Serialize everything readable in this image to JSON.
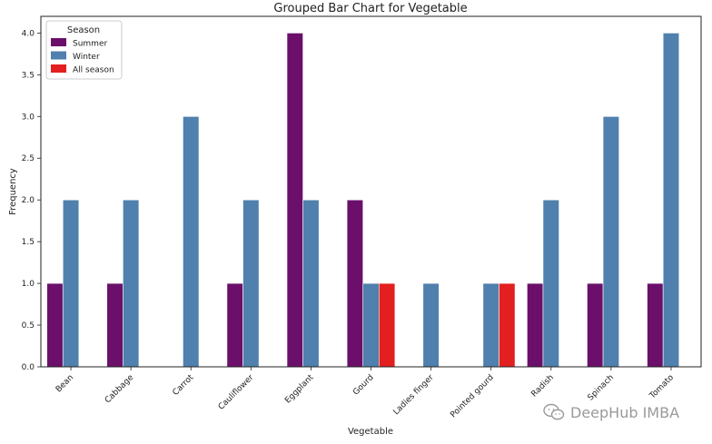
{
  "chart_data": {
    "type": "bar",
    "title": "Grouped Bar Chart for Vegetable",
    "xlabel": "Vegetable",
    "ylabel": "Frequency",
    "categories": [
      "Bean",
      "Cabbage",
      "Carrot",
      "Cauliflower",
      "Eggplant",
      "Gourd",
      "Ladies finger",
      "Pointed gourd",
      "Radish",
      "Spinach",
      "Tomato"
    ],
    "series": [
      {
        "name": "Summer",
        "color": "#6b0f6b",
        "values": [
          1,
          1,
          0,
          1,
          4,
          2,
          0,
          0,
          1,
          1,
          1
        ]
      },
      {
        "name": "Winter",
        "color": "#5080ad",
        "values": [
          2,
          2,
          3,
          2,
          2,
          1,
          1,
          1,
          2,
          3,
          4
        ]
      },
      {
        "name": "All season",
        "color": "#e31f1f",
        "values": [
          0,
          0,
          0,
          0,
          0,
          1,
          0,
          1,
          0,
          0,
          0
        ]
      }
    ],
    "ylim": [
      0,
      4.2
    ],
    "yticks": [
      0.0,
      0.5,
      1.0,
      1.5,
      2.0,
      2.5,
      3.0,
      3.5,
      4.0
    ],
    "legend": {
      "title": "Season",
      "position": "top-left"
    },
    "grid": false
  },
  "watermark": {
    "text": "DeepHub IMBA",
    "icon": "wechat-icon"
  }
}
